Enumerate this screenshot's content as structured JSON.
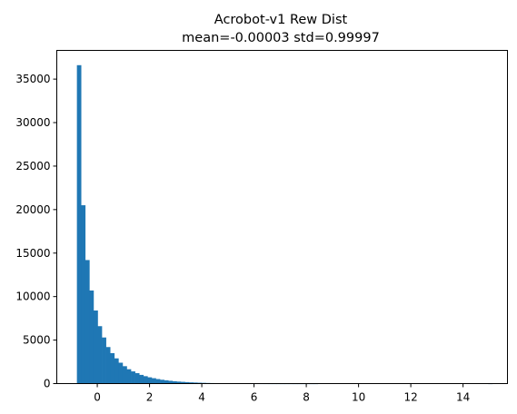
{
  "chart_data": {
    "type": "bar",
    "title": "Acrobot-v1 Rew Dist",
    "subtitle": "mean=-0.00003 std=0.99997",
    "xlabel": "",
    "ylabel": "",
    "xlim": [
      -1.55,
      15.7
    ],
    "ylim": [
      0,
      38300
    ],
    "grid": false,
    "legend": "none",
    "bar_color": "#1f77b4",
    "x_ticks": [
      0,
      2,
      4,
      6,
      8,
      10,
      12,
      14
    ],
    "x_tick_labels": [
      "0",
      "2",
      "4",
      "6",
      "8",
      "10",
      "12",
      "14"
    ],
    "y_ticks": [
      0,
      5000,
      10000,
      15000,
      20000,
      25000,
      30000,
      35000
    ],
    "y_tick_labels": [
      "0",
      "5000",
      "10000",
      "15000",
      "20000",
      "25000",
      "30000",
      "35000"
    ],
    "bin_start": -0.78,
    "bin_width": 0.159,
    "values": [
      36600,
      20500,
      14200,
      10700,
      8400,
      6600,
      5300,
      4200,
      3500,
      2900,
      2400,
      2000,
      1650,
      1400,
      1200,
      1000,
      850,
      720,
      620,
      520,
      440,
      380,
      320,
      270,
      230,
      200,
      170,
      140,
      120,
      100,
      85,
      70,
      60,
      50,
      40,
      30,
      25,
      20,
      18,
      15,
      12,
      10,
      8,
      7,
      6,
      5,
      4,
      3,
      3,
      2,
      2,
      2,
      1,
      1,
      1,
      1,
      1,
      1,
      0,
      0,
      0,
      0,
      0,
      0,
      0,
      0,
      0,
      0,
      0,
      0,
      0,
      0,
      0,
      0,
      0,
      0,
      0,
      0,
      0,
      0,
      0,
      0,
      0,
      0,
      0,
      0,
      0,
      0,
      0,
      0,
      0,
      0,
      0,
      0,
      0,
      0,
      0,
      0,
      0,
      1
    ]
  }
}
